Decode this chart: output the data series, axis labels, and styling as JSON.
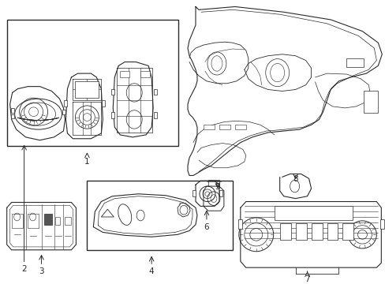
{
  "background_color": "#ffffff",
  "line_color": "#2a2a2a",
  "label_color": "#000000",
  "fig_width": 4.89,
  "fig_height": 3.6,
  "dpi": 100
}
